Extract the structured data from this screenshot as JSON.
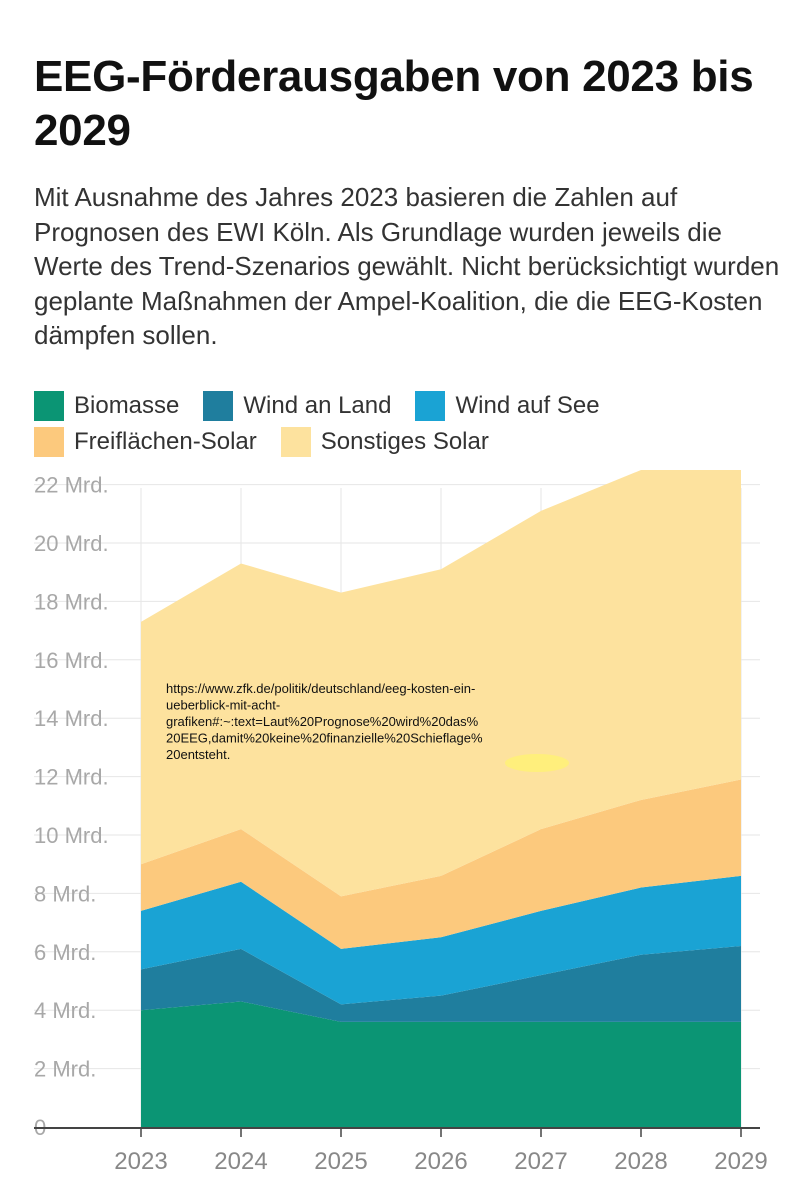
{
  "title": "EEG-Förderausgaben von 2023 bis 2029",
  "subtitle": "Mit Ausnahme des Jahres 2023 basieren die Zahlen auf Prognosen des EWI Köln. Als Grundlage wurden jeweils die Werte des Trend-Szenarios gewählt. Nicht berücksichtigt wurden geplante Maßnahmen der Ampel-Koalition, die die EEG-Kosten dämpfen sollen.",
  "chart_data": {
    "type": "area",
    "stacked": true,
    "x": [
      "2023",
      "2024",
      "2025",
      "2026",
      "2027",
      "2028",
      "2029"
    ],
    "ylim": [
      0,
      22.5
    ],
    "yticks": [
      0,
      2,
      4,
      6,
      8,
      10,
      12,
      14,
      16,
      18,
      20,
      22
    ],
    "ytick_labels": [
      "0",
      "2 Mrd.",
      "4 Mrd.",
      "6 Mrd.",
      "8 Mrd.",
      "10 Mrd.",
      "12 Mrd.",
      "14 Mrd.",
      "16 Mrd.",
      "18 Mrd.",
      "20 Mrd.",
      "22 Mrd."
    ],
    "grid": true,
    "legend_position": "top-left",
    "series": [
      {
        "name": "Biomasse",
        "color": "#0b9574",
        "values": [
          4.0,
          4.3,
          3.6,
          3.6,
          3.6,
          3.6,
          3.6
        ]
      },
      {
        "name": "Wind an Land",
        "color": "#1f7e9e",
        "values": [
          1.4,
          1.8,
          0.6,
          0.9,
          1.6,
          2.3,
          2.6
        ]
      },
      {
        "name": "Wind auf See",
        "color": "#1aa3d4",
        "values": [
          2.0,
          2.3,
          1.9,
          2.0,
          2.2,
          2.3,
          2.4
        ]
      },
      {
        "name": "Freiflächen-Solar",
        "color": "#fcc97d",
        "values": [
          1.6,
          1.8,
          1.8,
          2.1,
          2.8,
          3.0,
          3.3
        ]
      },
      {
        "name": "Sonstiges Solar",
        "color": "#fde29e",
        "values": [
          8.3,
          9.1,
          10.4,
          10.5,
          10.9,
          11.3,
          10.8
        ]
      }
    ],
    "annotation": "https://www.zfk.de/politik/deutschland/eeg-kosten-ein-ueberblick-mit-acht-grafiken#:~:text=Laut%20Prognose%20wird%20das%20EEG,damit%20keine%20finanzielle%20Schieflage%20entsteht."
  },
  "annotation_lines": [
    "https://www.zfk.de/politik/deutschland/eeg-kosten-ein-",
    "ueberblick-mit-acht-",
    "grafiken#:~:text=Laut%20Prognose%20wird%20das%",
    "20EEG,damit%20keine%20finanzielle%20Schieflage%",
    "20entsteht."
  ],
  "highlight_color": "#fff176"
}
